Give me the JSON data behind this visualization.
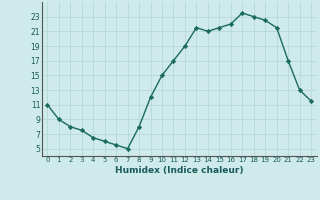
{
  "x": [
    0,
    1,
    2,
    3,
    4,
    5,
    6,
    7,
    8,
    9,
    10,
    11,
    12,
    13,
    14,
    15,
    16,
    17,
    18,
    19,
    20,
    21,
    22,
    23
  ],
  "y": [
    11,
    9,
    8,
    7.5,
    6.5,
    6,
    5.5,
    5,
    8,
    12,
    15,
    17,
    19,
    21.5,
    21,
    21.5,
    22,
    23.5,
    23,
    22.5,
    21.5,
    17,
    13,
    11.5
  ],
  "xlabel": "Humidex (Indice chaleur)",
  "xlim": [
    -0.5,
    23.5
  ],
  "ylim": [
    4,
    25
  ],
  "yticks": [
    5,
    7,
    9,
    11,
    13,
    15,
    17,
    19,
    21,
    23
  ],
  "xticks": [
    0,
    1,
    2,
    3,
    4,
    5,
    6,
    7,
    8,
    9,
    10,
    11,
    12,
    13,
    14,
    15,
    16,
    17,
    18,
    19,
    20,
    21,
    22,
    23
  ],
  "xtick_labels": [
    "0",
    "1",
    "2",
    "3",
    "4",
    "5",
    "6",
    "7",
    "8",
    "9",
    "10",
    "11",
    "12",
    "13",
    "14",
    "15",
    "16",
    "17",
    "18",
    "19",
    "20",
    "21",
    "22",
    "23"
  ],
  "line_color": "#1a6b5a",
  "bg_color": "#ceeaea",
  "grid_color": "#b8d8d8",
  "marker": "D",
  "marker_size": 2.2,
  "line_width": 1.0
}
